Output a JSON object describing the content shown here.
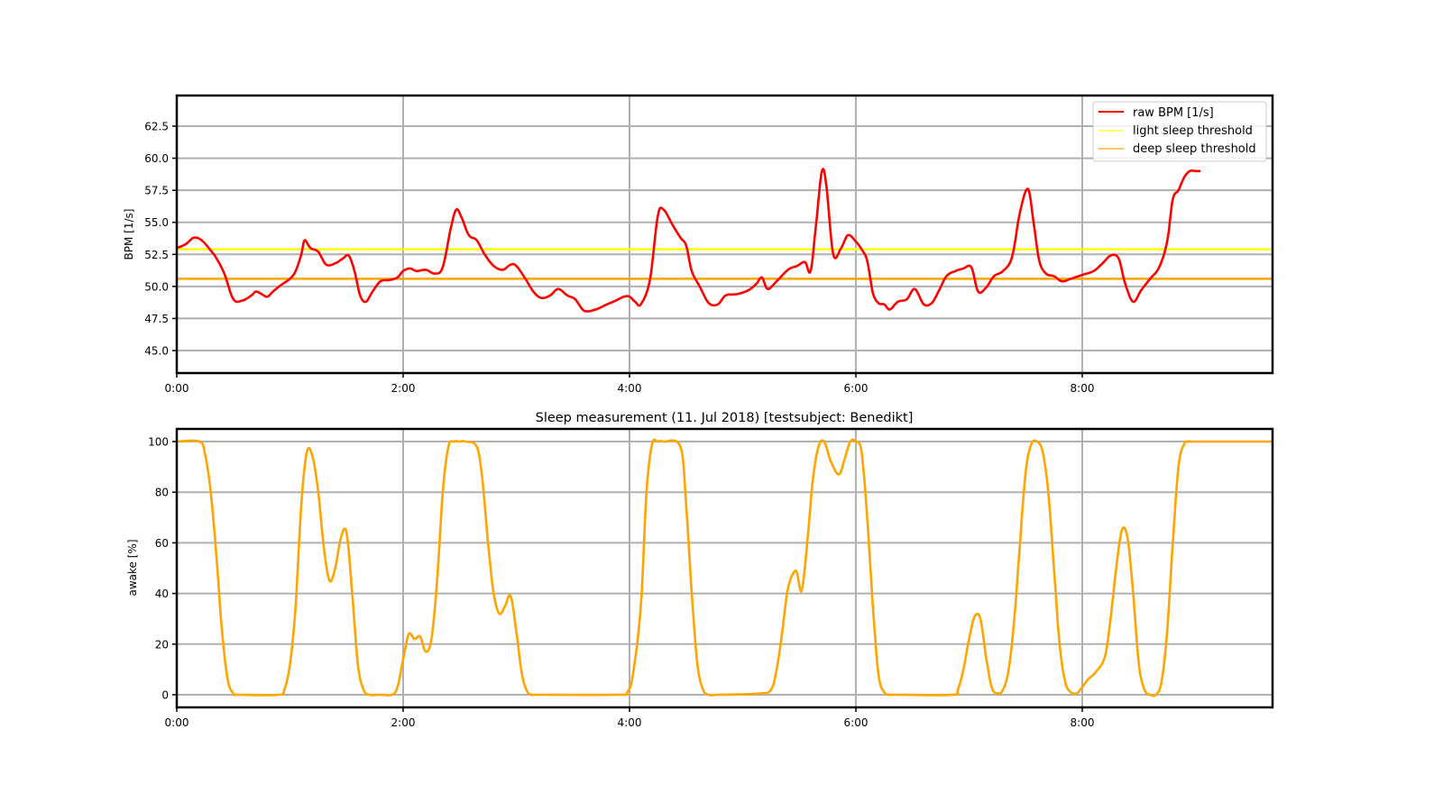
{
  "chart_data": [
    {
      "type": "line",
      "title": "",
      "xlabel": "",
      "ylabel": "BPM [1/s]",
      "xlim_hours": [
        0,
        9.68
      ],
      "ylim": [
        43.1,
        64.9
      ],
      "grid": true,
      "legend_position": "upper right",
      "x_ticks": [
        "0:00",
        "2:00",
        "4:00",
        "6:00",
        "8:00"
      ],
      "y_ticks": [
        "45.0",
        "47.5",
        "50.0",
        "52.5",
        "55.0",
        "57.5",
        "60.0",
        "62.5"
      ],
      "series": [
        {
          "name": "raw BPM [1/s]",
          "color": "#ff0000",
          "x_hours": [
            0,
            0.08,
            0.15,
            0.22,
            0.3,
            0.35,
            0.42,
            0.5,
            0.58,
            0.66,
            0.7,
            0.75,
            0.8,
            0.85,
            0.92,
            1.0,
            1.05,
            1.1,
            1.13,
            1.18,
            1.25,
            1.32,
            1.4,
            1.47,
            1.52,
            1.57,
            1.62,
            1.67,
            1.73,
            1.8,
            1.88,
            1.95,
            2.0,
            2.06,
            2.12,
            2.2,
            2.28,
            2.35,
            2.42,
            2.47,
            2.52,
            2.58,
            2.65,
            2.72,
            2.8,
            2.88,
            2.95,
            3.0,
            3.08,
            3.15,
            3.22,
            3.3,
            3.37,
            3.45,
            3.52,
            3.6,
            3.7,
            3.8,
            3.88,
            3.95,
            4.0,
            4.05,
            4.1,
            4.18,
            4.25,
            4.3,
            4.38,
            4.45,
            4.5,
            4.55,
            4.62,
            4.7,
            4.78,
            4.85,
            4.95,
            5.05,
            5.12,
            5.17,
            5.22,
            5.3,
            5.4,
            5.48,
            5.55,
            5.6,
            5.65,
            5.7,
            5.74,
            5.8,
            5.87,
            5.93,
            6.0,
            6.05,
            6.1,
            6.15,
            6.2,
            6.25,
            6.3,
            6.37,
            6.45,
            6.52,
            6.6,
            6.67,
            6.73,
            6.8,
            6.88,
            6.95,
            7.02,
            7.08,
            7.15,
            7.22,
            7.3,
            7.38,
            7.45,
            7.52,
            7.57,
            7.62,
            7.68,
            7.75,
            7.82,
            7.9,
            8.0,
            8.1,
            8.18,
            8.25,
            8.32,
            8.38,
            8.45,
            8.52,
            8.6,
            8.68,
            8.75,
            8.8,
            8.85,
            8.9,
            8.95,
            9.0,
            9.05,
            9.1,
            9.2,
            9.68
          ],
          "values": [
            53.0,
            53.3,
            53.8,
            53.6,
            52.8,
            52.2,
            51.0,
            49.0,
            48.9,
            49.3,
            49.6,
            49.4,
            49.2,
            49.6,
            50.1,
            50.6,
            51.2,
            52.5,
            53.6,
            53.0,
            52.7,
            51.7,
            51.8,
            52.2,
            52.4,
            51.2,
            49.3,
            48.8,
            49.6,
            50.4,
            50.5,
            50.7,
            51.2,
            51.4,
            51.2,
            51.3,
            51.0,
            51.5,
            54.5,
            56.0,
            55.3,
            54.0,
            53.6,
            52.5,
            51.6,
            51.3,
            51.7,
            51.6,
            50.6,
            49.6,
            49.1,
            49.3,
            49.8,
            49.3,
            49.0,
            48.1,
            48.2,
            48.6,
            48.9,
            49.2,
            49.2,
            48.8,
            48.6,
            50.5,
            55.5,
            56.0,
            54.8,
            53.8,
            53.2,
            51.2,
            50.0,
            48.7,
            48.6,
            49.3,
            49.4,
            49.7,
            50.2,
            50.7,
            49.8,
            50.4,
            51.3,
            51.6,
            51.9,
            51.2,
            55.0,
            59.0,
            57.8,
            52.5,
            53.0,
            54.0,
            53.5,
            52.9,
            52.0,
            49.5,
            48.7,
            48.6,
            48.2,
            48.8,
            49.0,
            49.8,
            48.6,
            48.7,
            49.6,
            50.8,
            51.2,
            51.4,
            51.5,
            49.6,
            49.9,
            50.8,
            51.2,
            52.3,
            55.8,
            57.6,
            55.0,
            52.0,
            51.0,
            50.8,
            50.4,
            50.6,
            50.9,
            51.2,
            51.8,
            52.4,
            52.2,
            50.2,
            48.8,
            49.7,
            50.6,
            51.5,
            53.5,
            56.8,
            57.5,
            58.5,
            59.0,
            59.0,
            59.0,
            59.0
          ]
        },
        {
          "name": "light sleep threshold",
          "color": "#ffff00",
          "x_hours": [
            0,
            9.68
          ],
          "values": [
            52.9,
            52.9
          ]
        },
        {
          "name": "deep sleep threshold",
          "color": "#ffa500",
          "x_hours": [
            0,
            9.68
          ],
          "values": [
            50.6,
            50.6
          ]
        }
      ]
    },
    {
      "type": "line",
      "title": "Sleep measurement (11. Jul 2018) [testsubject: Benedikt]",
      "xlabel": "",
      "ylabel": "awake [%]",
      "xlim_hours": [
        0,
        9.68
      ],
      "ylim": [
        -5,
        105
      ],
      "grid": true,
      "x_ticks": [
        "0:00",
        "2:00",
        "4:00",
        "6:00",
        "8:00"
      ],
      "y_ticks": [
        "0",
        "20",
        "40",
        "60",
        "80",
        "100"
      ],
      "series": [
        {
          "name": "awake",
          "color": "#ffa500",
          "x_hours": [
            0,
            0.2,
            0.25,
            0.3,
            0.35,
            0.4,
            0.45,
            0.5,
            0.55,
            0.9,
            0.95,
            1.0,
            1.05,
            1.1,
            1.15,
            1.2,
            1.25,
            1.3,
            1.35,
            1.4,
            1.45,
            1.5,
            1.55,
            1.6,
            1.65,
            1.7,
            1.8,
            1.9,
            1.95,
            2.0,
            2.05,
            2.1,
            2.15,
            2.2,
            2.25,
            2.3,
            2.35,
            2.4,
            2.45,
            2.5,
            2.55,
            2.65,
            2.7,
            2.75,
            2.8,
            2.85,
            2.9,
            2.95,
            3.0,
            3.05,
            3.1,
            3.15,
            3.2,
            3.9,
            3.98,
            4.03,
            4.1,
            4.15,
            4.2,
            4.25,
            4.3,
            4.45,
            4.5,
            4.55,
            4.6,
            4.65,
            4.7,
            4.8,
            5.15,
            5.25,
            5.3,
            5.35,
            5.4,
            5.47,
            5.52,
            5.57,
            5.62,
            5.67,
            5.72,
            5.78,
            5.85,
            5.9,
            5.95,
            6.0,
            6.05,
            6.1,
            6.15,
            6.2,
            6.25,
            6.3,
            6.35,
            6.85,
            6.9,
            6.95,
            7.0,
            7.05,
            7.1,
            7.15,
            7.2,
            7.25,
            7.3,
            7.35,
            7.4,
            7.45,
            7.5,
            7.55,
            7.6,
            7.65,
            7.7,
            7.75,
            7.8,
            7.85,
            7.9,
            7.95,
            8.0,
            8.05,
            8.12,
            8.2,
            8.25,
            8.3,
            8.35,
            8.4,
            8.45,
            8.5,
            8.55,
            8.6,
            8.65,
            8.7,
            8.75,
            8.8,
            8.85,
            8.9,
            8.95,
            9.0,
            9.68
          ],
          "values": [
            100,
            100,
            95,
            80,
            55,
            25,
            6,
            0.5,
            0,
            0,
            2,
            12,
            35,
            75,
            96,
            94,
            80,
            58,
            45,
            50,
            62,
            64,
            40,
            12,
            2,
            0,
            0,
            0,
            3,
            14,
            24,
            22,
            23,
            17,
            22,
            45,
            80,
            98,
            100,
            100,
            100,
            98,
            85,
            60,
            40,
            32,
            35,
            39,
            25,
            8,
            1,
            0,
            0,
            0,
            1,
            8,
            35,
            80,
            99,
            100,
            100,
            98,
            75,
            40,
            12,
            2,
            0,
            0,
            0.5,
            2,
            10,
            25,
            42,
            49,
            41,
            60,
            85,
            98,
            100,
            92,
            87,
            93,
            100,
            100,
            96,
            70,
            35,
            8,
            1,
            0,
            0,
            0,
            2,
            10,
            22,
            31,
            30,
            15,
            3,
            0.5,
            2,
            10,
            30,
            60,
            88,
            99,
            100,
            96,
            80,
            50,
            20,
            5,
            1,
            0.5,
            3,
            6,
            9,
            15,
            30,
            50,
            65,
            62,
            40,
            12,
            2,
            0,
            0,
            5,
            25,
            60,
            90,
            99,
            100,
            100,
            100
          ]
        }
      ]
    }
  ],
  "top_chart": {
    "ylabel": "BPM [1/s]",
    "legend": [
      {
        "label": "raw BPM [1/s]",
        "color": "#ff0000"
      },
      {
        "label": "light sleep threshold",
        "color": "#ffff00"
      },
      {
        "label": "deep sleep threshold",
        "color": "#ffa500"
      }
    ],
    "y_ticks": [
      "62.5",
      "60.0",
      "57.5",
      "55.0",
      "52.5",
      "50.0",
      "47.5",
      "45.0"
    ],
    "x_ticks": [
      "0:00",
      "2:00",
      "4:00",
      "6:00",
      "8:00"
    ]
  },
  "bottom_chart": {
    "title": "Sleep measurement (11. Jul 2018) [testsubject: Benedikt]",
    "ylabel": "awake [%]",
    "y_ticks": [
      "100",
      "80",
      "60",
      "40",
      "20",
      "0"
    ],
    "x_ticks": [
      "0:00",
      "2:00",
      "4:00",
      "6:00",
      "8:00"
    ]
  },
  "colors": {
    "bpm": "#ff0000",
    "light_threshold": "#ffff00",
    "deep_threshold": "#ffa500",
    "awake": "#ffa500",
    "grid": "#b0b0b0",
    "axes": "#000000"
  }
}
